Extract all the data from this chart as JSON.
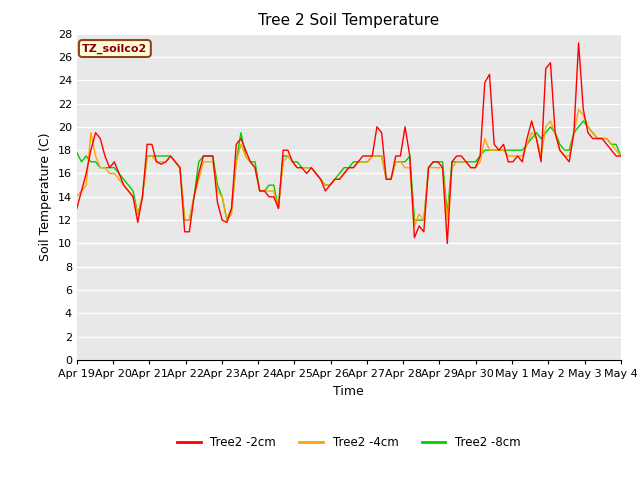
{
  "title": "Tree 2 Soil Temperature",
  "xlabel": "Time",
  "ylabel": "Soil Temperature (C)",
  "annotation": "TZ_soilco2",
  "ylim": [
    0,
    28
  ],
  "yticks": [
    0,
    2,
    4,
    6,
    8,
    10,
    12,
    14,
    16,
    18,
    20,
    22,
    24,
    26,
    28
  ],
  "xtick_labels": [
    "Apr 19",
    "Apr 20",
    "Apr 21",
    "Apr 22",
    "Apr 23",
    "Apr 24",
    "Apr 25",
    "Apr 26",
    "Apr 27",
    "Apr 28",
    "Apr 29",
    "Apr 30",
    "May 1",
    "May 2",
    "May 3",
    "May 4"
  ],
  "colors": {
    "2cm": "#ff0000",
    "4cm": "#ffa500",
    "8cm": "#00cc00"
  },
  "legend_labels": [
    "Tree2 -2cm",
    "Tree2 -4cm",
    "Tree2 -8cm"
  ],
  "fig_bg_color": "#ffffff",
  "plot_bg_color": "#e8e8e8",
  "grid_color": "#ffffff",
  "title_fontsize": 11,
  "label_fontsize": 9,
  "tick_fontsize": 8,
  "t_2cm": [
    13.0,
    14.5,
    16.0,
    18.0,
    19.5,
    19.0,
    17.5,
    16.5,
    17.0,
    16.0,
    15.0,
    14.5,
    14.0,
    11.8,
    14.0,
    18.5,
    18.5,
    17.0,
    16.8,
    17.0,
    17.5,
    17.0,
    16.5,
    11.0,
    11.0,
    14.0,
    16.0,
    17.5,
    17.5,
    17.5,
    13.5,
    12.0,
    11.8,
    13.0,
    18.5,
    19.0,
    18.0,
    17.0,
    16.5,
    14.5,
    14.5,
    14.0,
    14.0,
    13.0,
    18.0,
    18.0,
    17.0,
    16.5,
    16.5,
    16.0,
    16.5,
    16.0,
    15.5,
    14.5,
    15.0,
    15.5,
    15.5,
    16.0,
    16.5,
    16.5,
    17.0,
    17.5,
    17.5,
    17.5,
    20.0,
    19.5,
    15.5,
    15.5,
    17.5,
    17.5,
    20.0,
    17.5,
    10.5,
    11.5,
    11.0,
    16.5,
    17.0,
    17.0,
    16.5,
    10.0,
    17.0,
    17.5,
    17.5,
    17.0,
    16.5,
    16.5,
    17.5,
    23.8,
    24.5,
    18.5,
    18.0,
    18.5,
    17.0,
    17.0,
    17.5,
    17.0,
    19.0,
    20.5,
    19.0,
    17.0,
    25.0,
    25.5,
    19.5,
    18.0,
    17.5,
    17.0,
    19.5,
    27.2,
    21.5,
    19.5,
    19.0,
    19.0,
    19.0,
    18.5,
    18.0,
    17.5,
    17.5
  ],
  "t_4cm": [
    14.0,
    14.5,
    15.0,
    19.5,
    17.5,
    16.5,
    16.5,
    16.0,
    16.0,
    15.5,
    15.0,
    14.5,
    14.0,
    12.5,
    14.0,
    17.5,
    17.5,
    17.0,
    17.0,
    17.0,
    17.5,
    17.0,
    16.5,
    12.0,
    12.0,
    14.0,
    15.5,
    17.0,
    17.0,
    17.0,
    14.5,
    14.0,
    12.0,
    12.5,
    17.0,
    18.5,
    17.5,
    17.0,
    16.5,
    14.5,
    14.5,
    14.5,
    14.5,
    13.0,
    17.0,
    17.5,
    17.0,
    16.5,
    16.5,
    16.5,
    16.5,
    16.0,
    15.5,
    15.0,
    15.0,
    15.5,
    15.5,
    16.0,
    16.5,
    16.5,
    17.0,
    17.0,
    17.0,
    17.5,
    17.5,
    17.5,
    15.5,
    15.5,
    17.0,
    17.0,
    16.5,
    16.5,
    11.5,
    12.5,
    12.0,
    16.5,
    16.5,
    16.5,
    16.5,
    12.0,
    16.5,
    17.0,
    17.0,
    17.0,
    16.5,
    16.5,
    17.0,
    19.0,
    18.0,
    18.0,
    18.0,
    18.0,
    17.5,
    17.5,
    17.5,
    17.5,
    18.5,
    19.5,
    19.0,
    17.5,
    20.0,
    20.5,
    19.5,
    18.0,
    17.5,
    17.5,
    19.5,
    21.5,
    21.0,
    20.0,
    19.5,
    19.0,
    19.0,
    19.0,
    18.5,
    18.0,
    17.5
  ],
  "t_8cm": [
    17.8,
    17.0,
    17.5,
    17.0,
    17.0,
    16.5,
    16.5,
    16.5,
    16.5,
    16.0,
    15.5,
    15.0,
    14.5,
    12.5,
    14.0,
    17.5,
    17.5,
    17.5,
    17.5,
    17.5,
    17.5,
    17.0,
    16.5,
    12.0,
    12.0,
    14.0,
    17.0,
    17.5,
    17.5,
    17.5,
    15.0,
    14.0,
    12.0,
    13.0,
    17.0,
    19.5,
    17.5,
    17.0,
    17.0,
    14.5,
    14.5,
    15.0,
    15.0,
    13.0,
    17.5,
    17.5,
    17.0,
    17.0,
    16.5,
    16.5,
    16.5,
    16.0,
    15.5,
    15.0,
    15.0,
    15.5,
    16.0,
    16.5,
    16.5,
    17.0,
    17.0,
    17.0,
    17.0,
    17.5,
    17.5,
    17.5,
    15.5,
    15.5,
    17.0,
    17.0,
    17.0,
    17.5,
    12.0,
    12.0,
    12.0,
    16.5,
    17.0,
    17.0,
    17.0,
    12.5,
    17.0,
    17.0,
    17.0,
    17.0,
    17.0,
    17.0,
    17.5,
    18.0,
    18.0,
    18.0,
    18.0,
    18.0,
    18.0,
    18.0,
    18.0,
    18.0,
    18.5,
    19.0,
    19.5,
    19.0,
    19.5,
    20.0,
    19.5,
    18.5,
    18.0,
    18.0,
    19.5,
    20.0,
    20.5,
    20.0,
    19.5,
    19.0,
    19.0,
    19.0,
    18.5,
    18.5,
    17.5
  ]
}
